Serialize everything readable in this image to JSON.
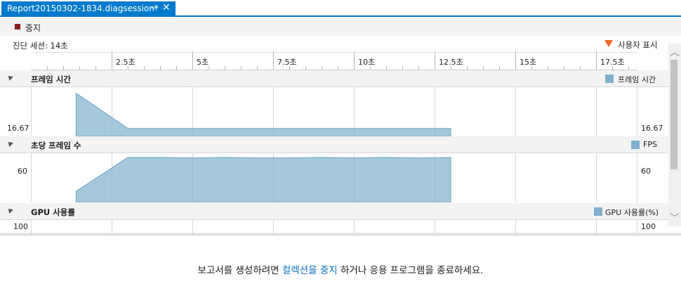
{
  "tab": {
    "title": "Report20150302-1834.diagsession*",
    "pin": "⊣",
    "close": "✕"
  },
  "toolbar": {
    "stop_label": "중지",
    "stop_color": "#8b1e1e"
  },
  "session": {
    "label": "진단 세션: 14초"
  },
  "user_marks": {
    "label": "사용자 표시",
    "marker_color": "#f26522"
  },
  "ruler": {
    "ticks": [
      "2.5초",
      "5초",
      "7.5초",
      "10초",
      "12.5초",
      "15초",
      "17.5초"
    ]
  },
  "sections": {
    "frame_time": {
      "title": "프레임 시간",
      "legend": "프레임 시간",
      "value_left": "16.67",
      "value_right": "16.67",
      "series_color": "#7fb0cd",
      "values": [
        0.93,
        0.17,
        0.17,
        0.17,
        0.17,
        0.17,
        0.17,
        0.17,
        0.17,
        0.17,
        0.17,
        0.17
      ],
      "x_seconds": [
        1.4,
        3.0,
        4.0,
        5.5,
        6.5,
        7.5,
        8.5,
        9.5,
        10.5,
        11.5,
        12.5,
        13.0
      ]
    },
    "fps": {
      "title": "초당 프레임 수",
      "legend": "FPS",
      "value_left": "60",
      "value_right": "60",
      "series_color": "#7fb0cd",
      "values": [
        0.24,
        0.97,
        0.97,
        0.96,
        0.97,
        0.96,
        0.96,
        0.97,
        0.96,
        0.97,
        0.96,
        0.97
      ],
      "x_seconds": [
        1.4,
        3.0,
        4.0,
        5.0,
        6.0,
        7.0,
        8.0,
        9.0,
        10.0,
        11.0,
        12.0,
        13.0
      ]
    },
    "gpu": {
      "title": "GPU 사용률",
      "legend": "GPU 사용률(%)",
      "value_left": "100",
      "value_right": "100"
    }
  },
  "bottom_message": {
    "before": "보고서를 생성하려면 ",
    "link": "컬렉션을 중지",
    "after": " 하거나 응용 프로그램을 종료하세요."
  }
}
